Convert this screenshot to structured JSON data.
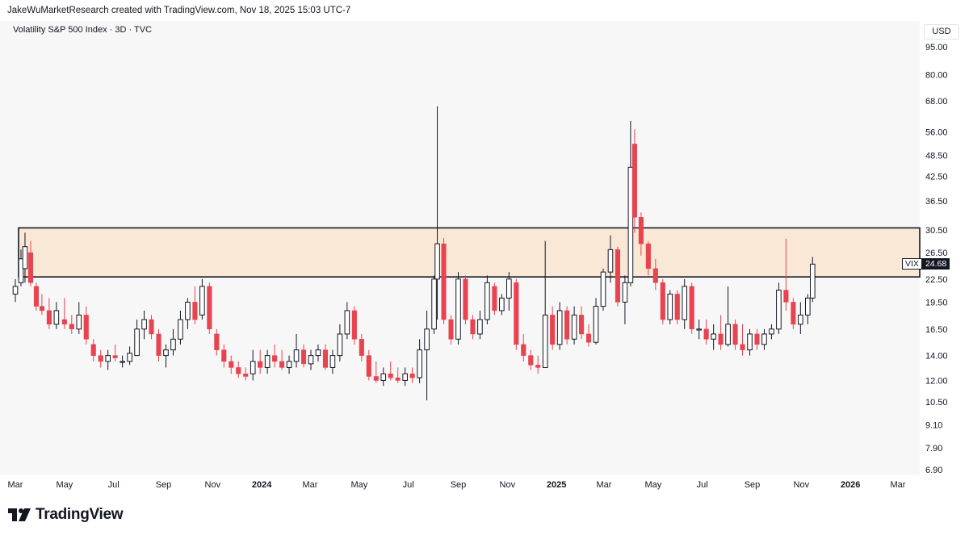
{
  "header": {
    "attribution": "JakeWuMarketResearch created with TradingView.com, Nov 18, 2025 15:03 UTC-7",
    "symbol_line": "Volatility S&P 500 Index · 3D · TVC",
    "currency": "USD"
  },
  "brand": {
    "name": "TradingView"
  },
  "last_price": {
    "symbol": "VIX",
    "value": "24.68"
  },
  "colors": {
    "up": "#131722",
    "down": "#e8434f",
    "zone_fill": "#f9e8d6",
    "zone_border": "#131722"
  },
  "chart_data": {
    "type": "candlestick",
    "title": "",
    "y_scale": "log",
    "ylim": [
      6.5,
      110
    ],
    "y_ticks": [
      "95.00",
      "80.00",
      "68.00",
      "56.00",
      "48.50",
      "42.50",
      "36.50",
      "30.50",
      "26.50",
      "22.50",
      "19.50",
      "16.50",
      "14.00",
      "12.00",
      "10.50",
      "9.10",
      "7.90",
      "6.90"
    ],
    "x_ticks": [
      "Mar",
      "May",
      "Jul",
      "Sep",
      "Nov",
      "2024",
      "Mar",
      "May",
      "Jul",
      "Sep",
      "Nov",
      "2025",
      "Mar",
      "May",
      "Jul",
      "Sep",
      "Nov",
      "2026",
      "Mar"
    ],
    "x_range": [
      "2023-03-01",
      "2026-04-15"
    ],
    "zone": {
      "start": "2023-03-05",
      "end": "2026-04-15",
      "low": 22.8,
      "high": 30.9
    },
    "candles": [
      {
        "date": "2023-03-01",
        "o": 20.5,
        "h": 22.5,
        "l": 19.5,
        "c": 21.5
      },
      {
        "date": "2023-03-08",
        "o": 22.0,
        "h": 27.0,
        "l": 21.5,
        "c": 25.5
      },
      {
        "date": "2023-03-13",
        "o": 24.0,
        "h": 30.0,
        "l": 22.0,
        "c": 27.5
      },
      {
        "date": "2023-03-20",
        "o": 26.5,
        "h": 28.5,
        "l": 21.5,
        "c": 22.0
      },
      {
        "date": "2023-03-27",
        "o": 21.5,
        "h": 22.0,
        "l": 18.5,
        "c": 19.0
      },
      {
        "date": "2023-04-03",
        "o": 19.0,
        "h": 20.5,
        "l": 18.0,
        "c": 18.5
      },
      {
        "date": "2023-04-12",
        "o": 18.5,
        "h": 20.0,
        "l": 16.5,
        "c": 17.0
      },
      {
        "date": "2023-04-21",
        "o": 17.0,
        "h": 19.5,
        "l": 16.5,
        "c": 18.5
      },
      {
        "date": "2023-05-01",
        "o": 17.5,
        "h": 20.0,
        "l": 16.5,
        "c": 17.0
      },
      {
        "date": "2023-05-10",
        "o": 17.0,
        "h": 18.0,
        "l": 16.0,
        "c": 16.5
      },
      {
        "date": "2023-05-19",
        "o": 16.5,
        "h": 19.5,
        "l": 16.0,
        "c": 18.0
      },
      {
        "date": "2023-05-28",
        "o": 18.0,
        "h": 19.0,
        "l": 15.0,
        "c": 15.5
      },
      {
        "date": "2023-06-06",
        "o": 15.0,
        "h": 15.5,
        "l": 13.5,
        "c": 14.0
      },
      {
        "date": "2023-06-15",
        "o": 14.0,
        "h": 14.5,
        "l": 13.0,
        "c": 13.5
      },
      {
        "date": "2023-06-24",
        "o": 13.5,
        "h": 14.5,
        "l": 12.8,
        "c": 14.0
      },
      {
        "date": "2023-07-03",
        "o": 14.0,
        "h": 15.0,
        "l": 13.5,
        "c": 13.8
      },
      {
        "date": "2023-07-12",
        "o": 13.5,
        "h": 14.0,
        "l": 13.0,
        "c": 13.5
      },
      {
        "date": "2023-07-21",
        "o": 13.5,
        "h": 14.8,
        "l": 13.2,
        "c": 14.2
      },
      {
        "date": "2023-07-30",
        "o": 14.0,
        "h": 17.5,
        "l": 14.0,
        "c": 16.5
      },
      {
        "date": "2023-08-08",
        "o": 16.5,
        "h": 18.5,
        "l": 15.5,
        "c": 17.5
      },
      {
        "date": "2023-08-17",
        "o": 17.5,
        "h": 18.0,
        "l": 15.5,
        "c": 16.0
      },
      {
        "date": "2023-08-26",
        "o": 16.0,
        "h": 16.5,
        "l": 13.5,
        "c": 14.0
      },
      {
        "date": "2023-09-04",
        "o": 14.0,
        "h": 15.0,
        "l": 13.0,
        "c": 14.5
      },
      {
        "date": "2023-09-13",
        "o": 14.5,
        "h": 16.5,
        "l": 14.0,
        "c": 15.5
      },
      {
        "date": "2023-09-22",
        "o": 15.5,
        "h": 18.5,
        "l": 15.0,
        "c": 17.5
      },
      {
        "date": "2023-10-01",
        "o": 17.5,
        "h": 20.0,
        "l": 16.5,
        "c": 19.5
      },
      {
        "date": "2023-10-10",
        "o": 19.5,
        "h": 21.5,
        "l": 17.0,
        "c": 17.5
      },
      {
        "date": "2023-10-19",
        "o": 18.0,
        "h": 22.5,
        "l": 17.5,
        "c": 21.5
      },
      {
        "date": "2023-10-28",
        "o": 21.5,
        "h": 22.0,
        "l": 16.0,
        "c": 16.5
      },
      {
        "date": "2023-11-06",
        "o": 16.0,
        "h": 16.5,
        "l": 14.0,
        "c": 14.5
      },
      {
        "date": "2023-11-15",
        "o": 14.5,
        "h": 15.0,
        "l": 13.0,
        "c": 13.5
      },
      {
        "date": "2023-11-24",
        "o": 13.5,
        "h": 14.0,
        "l": 12.5,
        "c": 13.0
      },
      {
        "date": "2023-12-03",
        "o": 13.0,
        "h": 13.5,
        "l": 12.2,
        "c": 12.5
      },
      {
        "date": "2023-12-12",
        "o": 12.5,
        "h": 13.0,
        "l": 12.0,
        "c": 12.3
      },
      {
        "date": "2023-12-21",
        "o": 12.5,
        "h": 14.5,
        "l": 12.0,
        "c": 13.5
      },
      {
        "date": "2023-12-30",
        "o": 13.5,
        "h": 14.5,
        "l": 12.5,
        "c": 13.0
      },
      {
        "date": "2024-01-08",
        "o": 13.0,
        "h": 14.5,
        "l": 12.5,
        "c": 14.0
      },
      {
        "date": "2024-01-17",
        "o": 14.0,
        "h": 15.0,
        "l": 13.0,
        "c": 13.5
      },
      {
        "date": "2024-01-26",
        "o": 13.5,
        "h": 14.5,
        "l": 12.8,
        "c": 13.0
      },
      {
        "date": "2024-02-04",
        "o": 13.0,
        "h": 14.0,
        "l": 12.5,
        "c": 13.5
      },
      {
        "date": "2024-02-13",
        "o": 13.5,
        "h": 16.0,
        "l": 13.0,
        "c": 14.5
      },
      {
        "date": "2024-02-22",
        "o": 14.5,
        "h": 15.0,
        "l": 13.0,
        "c": 13.3
      },
      {
        "date": "2024-03-02",
        "o": 13.3,
        "h": 14.5,
        "l": 12.8,
        "c": 14.0
      },
      {
        "date": "2024-03-11",
        "o": 14.0,
        "h": 15.0,
        "l": 13.5,
        "c": 14.5
      },
      {
        "date": "2024-03-20",
        "o": 14.5,
        "h": 15.0,
        "l": 12.8,
        "c": 13.0
      },
      {
        "date": "2024-03-29",
        "o": 13.0,
        "h": 14.5,
        "l": 12.5,
        "c": 14.0
      },
      {
        "date": "2024-04-07",
        "o": 14.0,
        "h": 17.0,
        "l": 13.5,
        "c": 16.0
      },
      {
        "date": "2024-04-16",
        "o": 16.0,
        "h": 19.5,
        "l": 15.5,
        "c": 18.5
      },
      {
        "date": "2024-04-25",
        "o": 18.5,
        "h": 19.0,
        "l": 15.0,
        "c": 15.5
      },
      {
        "date": "2024-05-04",
        "o": 15.5,
        "h": 16.0,
        "l": 13.5,
        "c": 14.0
      },
      {
        "date": "2024-05-13",
        "o": 14.0,
        "h": 14.5,
        "l": 12.0,
        "c": 12.3
      },
      {
        "date": "2024-05-22",
        "o": 12.3,
        "h": 13.5,
        "l": 11.8,
        "c": 12.0
      },
      {
        "date": "2024-05-31",
        "o": 12.0,
        "h": 13.0,
        "l": 11.6,
        "c": 12.5
      },
      {
        "date": "2024-06-09",
        "o": 12.5,
        "h": 13.5,
        "l": 12.0,
        "c": 12.2
      },
      {
        "date": "2024-06-18",
        "o": 12.2,
        "h": 13.0,
        "l": 11.8,
        "c": 12.0
      },
      {
        "date": "2024-06-27",
        "o": 12.0,
        "h": 13.0,
        "l": 11.6,
        "c": 12.5
      },
      {
        "date": "2024-07-06",
        "o": 12.5,
        "h": 13.0,
        "l": 11.8,
        "c": 12.2
      },
      {
        "date": "2024-07-15",
        "o": 12.2,
        "h": 15.5,
        "l": 11.8,
        "c": 14.5
      },
      {
        "date": "2024-07-24",
        "o": 14.5,
        "h": 18.5,
        "l": 10.6,
        "c": 16.5
      },
      {
        "date": "2024-08-02",
        "o": 16.5,
        "h": 23.0,
        "l": 16.0,
        "c": 22.5
      },
      {
        "date": "2024-08-06",
        "o": 22.5,
        "h": 65.7,
        "l": 17.5,
        "c": 28.0
      },
      {
        "date": "2024-08-14",
        "o": 28.0,
        "h": 29.0,
        "l": 17.0,
        "c": 17.5
      },
      {
        "date": "2024-08-23",
        "o": 17.5,
        "h": 18.0,
        "l": 15.0,
        "c": 15.5
      },
      {
        "date": "2024-09-01",
        "o": 15.5,
        "h": 23.5,
        "l": 15.0,
        "c": 22.5
      },
      {
        "date": "2024-09-10",
        "o": 22.5,
        "h": 23.0,
        "l": 17.0,
        "c": 17.5
      },
      {
        "date": "2024-09-19",
        "o": 17.5,
        "h": 18.0,
        "l": 15.5,
        "c": 16.0
      },
      {
        "date": "2024-09-28",
        "o": 16.0,
        "h": 18.5,
        "l": 15.5,
        "c": 17.5
      },
      {
        "date": "2024-10-07",
        "o": 17.5,
        "h": 23.0,
        "l": 17.0,
        "c": 22.0
      },
      {
        "date": "2024-10-16",
        "o": 21.5,
        "h": 22.0,
        "l": 18.0,
        "c": 18.5
      },
      {
        "date": "2024-10-25",
        "o": 18.5,
        "h": 20.5,
        "l": 18.0,
        "c": 20.0
      },
      {
        "date": "2024-11-03",
        "o": 20.0,
        "h": 23.5,
        "l": 18.5,
        "c": 22.5
      },
      {
        "date": "2024-11-12",
        "o": 22.0,
        "h": 22.5,
        "l": 14.5,
        "c": 15.0
      },
      {
        "date": "2024-11-21",
        "o": 15.0,
        "h": 16.0,
        "l": 13.5,
        "c": 14.0
      },
      {
        "date": "2024-11-30",
        "o": 14.0,
        "h": 14.5,
        "l": 12.8,
        "c": 13.2
      },
      {
        "date": "2024-12-09",
        "o": 13.2,
        "h": 14.0,
        "l": 12.5,
        "c": 13.0
      },
      {
        "date": "2024-12-18",
        "o": 13.0,
        "h": 28.5,
        "l": 13.0,
        "c": 18.0
      },
      {
        "date": "2024-12-27",
        "o": 18.0,
        "h": 19.0,
        "l": 14.5,
        "c": 15.0
      },
      {
        "date": "2025-01-05",
        "o": 15.0,
        "h": 19.5,
        "l": 14.5,
        "c": 18.5
      },
      {
        "date": "2025-01-14",
        "o": 18.5,
        "h": 19.0,
        "l": 15.0,
        "c": 15.5
      },
      {
        "date": "2025-01-23",
        "o": 15.5,
        "h": 19.0,
        "l": 15.0,
        "c": 18.0
      },
      {
        "date": "2025-02-01",
        "o": 18.0,
        "h": 19.0,
        "l": 15.5,
        "c": 16.0
      },
      {
        "date": "2025-02-10",
        "o": 16.0,
        "h": 17.0,
        "l": 14.8,
        "c": 15.2
      },
      {
        "date": "2025-02-19",
        "o": 15.2,
        "h": 20.0,
        "l": 15.0,
        "c": 19.0
      },
      {
        "date": "2025-02-28",
        "o": 19.0,
        "h": 24.0,
        "l": 18.5,
        "c": 23.5
      },
      {
        "date": "2025-03-09",
        "o": 23.5,
        "h": 29.5,
        "l": 22.0,
        "c": 27.0
      },
      {
        "date": "2025-03-18",
        "o": 27.0,
        "h": 27.5,
        "l": 19.0,
        "c": 19.5
      },
      {
        "date": "2025-03-27",
        "o": 19.5,
        "h": 23.0,
        "l": 17.0,
        "c": 22.0
      },
      {
        "date": "2025-04-03",
        "o": 22.0,
        "h": 60.0,
        "l": 21.5,
        "c": 45.0
      },
      {
        "date": "2025-04-08",
        "o": 52.0,
        "h": 57.0,
        "l": 30.0,
        "c": 33.0
      },
      {
        "date": "2025-04-16",
        "o": 33.0,
        "h": 34.0,
        "l": 26.0,
        "c": 28.0
      },
      {
        "date": "2025-04-25",
        "o": 28.0,
        "h": 28.5,
        "l": 23.0,
        "c": 24.0
      },
      {
        "date": "2025-05-04",
        "o": 24.0,
        "h": 25.5,
        "l": 21.0,
        "c": 22.0
      },
      {
        "date": "2025-05-13",
        "o": 22.0,
        "h": 22.5,
        "l": 17.0,
        "c": 17.5
      },
      {
        "date": "2025-05-22",
        "o": 17.5,
        "h": 21.0,
        "l": 17.0,
        "c": 20.5
      },
      {
        "date": "2025-05-31",
        "o": 20.5,
        "h": 21.0,
        "l": 17.0,
        "c": 17.5
      },
      {
        "date": "2025-06-09",
        "o": 17.5,
        "h": 22.5,
        "l": 16.5,
        "c": 21.5
      },
      {
        "date": "2025-06-18",
        "o": 21.5,
        "h": 22.0,
        "l": 16.0,
        "c": 16.5
      },
      {
        "date": "2025-06-27",
        "o": 16.5,
        "h": 17.5,
        "l": 15.5,
        "c": 16.5
      },
      {
        "date": "2025-07-06",
        "o": 16.5,
        "h": 17.5,
        "l": 15.0,
        "c": 15.5
      },
      {
        "date": "2025-07-15",
        "o": 15.5,
        "h": 17.0,
        "l": 14.5,
        "c": 16.0
      },
      {
        "date": "2025-07-24",
        "o": 16.0,
        "h": 18.0,
        "l": 14.5,
        "c": 15.0
      },
      {
        "date": "2025-08-02",
        "o": 15.0,
        "h": 21.5,
        "l": 14.8,
        "c": 17.0
      },
      {
        "date": "2025-08-11",
        "o": 17.0,
        "h": 17.5,
        "l": 14.5,
        "c": 15.0
      },
      {
        "date": "2025-08-20",
        "o": 15.0,
        "h": 17.0,
        "l": 14.0,
        "c": 14.5
      },
      {
        "date": "2025-08-29",
        "o": 14.5,
        "h": 16.5,
        "l": 14.0,
        "c": 16.0
      },
      {
        "date": "2025-09-07",
        "o": 16.0,
        "h": 16.5,
        "l": 14.5,
        "c": 15.0
      },
      {
        "date": "2025-09-16",
        "o": 15.0,
        "h": 16.5,
        "l": 14.5,
        "c": 16.0
      },
      {
        "date": "2025-09-25",
        "o": 16.0,
        "h": 17.0,
        "l": 15.5,
        "c": 16.5
      },
      {
        "date": "2025-10-04",
        "o": 16.5,
        "h": 22.0,
        "l": 16.0,
        "c": 21.0
      },
      {
        "date": "2025-10-13",
        "o": 21.0,
        "h": 28.9,
        "l": 18.5,
        "c": 19.5
      },
      {
        "date": "2025-10-22",
        "o": 19.5,
        "h": 20.0,
        "l": 16.5,
        "c": 17.0
      },
      {
        "date": "2025-10-31",
        "o": 17.0,
        "h": 19.5,
        "l": 16.0,
        "c": 18.0
      },
      {
        "date": "2025-11-09",
        "o": 18.0,
        "h": 20.5,
        "l": 17.0,
        "c": 20.0
      },
      {
        "date": "2025-11-15",
        "o": 20.0,
        "h": 25.8,
        "l": 19.5,
        "c": 24.68
      }
    ]
  }
}
